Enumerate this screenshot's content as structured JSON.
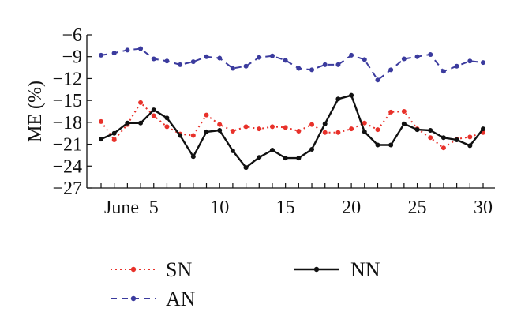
{
  "chart_data": {
    "type": "line",
    "title": "",
    "xlabel": "",
    "ylabel": "ME (%)",
    "xlim": [
      1,
      30
    ],
    "ylim": [
      -27,
      -6
    ],
    "y_ticks": [
      -6,
      -9,
      -12,
      -15,
      -18,
      -21,
      -24,
      -27
    ],
    "x_ticks": [
      {
        "value": 1,
        "label": "June"
      },
      {
        "value": 5,
        "label": "5"
      },
      {
        "value": 10,
        "label": "10"
      },
      {
        "value": 15,
        "label": "15"
      },
      {
        "value": 20,
        "label": "20"
      },
      {
        "value": 25,
        "label": "25"
      },
      {
        "value": 30,
        "label": "30"
      }
    ],
    "grid": false,
    "legend_position": "bottom",
    "x": [
      1,
      2,
      3,
      4,
      5,
      6,
      7,
      8,
      9,
      10,
      11,
      12,
      13,
      14,
      15,
      16,
      17,
      18,
      19,
      20,
      21,
      22,
      23,
      24,
      25,
      26,
      27,
      28,
      29,
      30
    ],
    "series": [
      {
        "name": "SN",
        "color": "#e8312a",
        "style": "dotted",
        "values": [
          -17.9,
          -20.4,
          -18.3,
          -15.3,
          -17.1,
          -18.6,
          -19.6,
          -19.8,
          -17.0,
          -18.3,
          -19.2,
          -18.6,
          -18.9,
          -18.6,
          -18.7,
          -19.2,
          -18.3,
          -19.4,
          -19.4,
          -18.9,
          -18.1,
          -19.0,
          -16.6,
          -16.5,
          -18.9,
          -20.1,
          -21.5,
          -20.3,
          -20.0,
          -19.4
        ]
      },
      {
        "name": "AN",
        "color": "#3b3b9e",
        "style": "dashed",
        "values": [
          -8.8,
          -8.5,
          -8.1,
          -7.9,
          -9.3,
          -9.6,
          -10.1,
          -9.7,
          -9.0,
          -9.2,
          -10.6,
          -10.3,
          -9.1,
          -8.9,
          -9.5,
          -10.6,
          -10.8,
          -10.1,
          -10.1,
          -8.8,
          -9.4,
          -12.2,
          -10.8,
          -9.3,
          -9.0,
          -8.7,
          -11.0,
          -10.3,
          -9.6,
          -9.8
        ]
      },
      {
        "name": "NN",
        "color": "#111111",
        "style": "solid",
        "values": [
          -20.3,
          -19.5,
          -18.1,
          -18.1,
          -16.3,
          -17.4,
          -19.8,
          -22.7,
          -19.3,
          -19.1,
          -21.9,
          -24.2,
          -22.8,
          -21.8,
          -22.9,
          -22.9,
          -21.7,
          -18.2,
          -14.8,
          -14.3,
          -19.3,
          -21.1,
          -21.1,
          -18.2,
          -19.0,
          -19.1,
          -20.1,
          -20.4,
          -21.2,
          -18.9
        ]
      }
    ]
  }
}
